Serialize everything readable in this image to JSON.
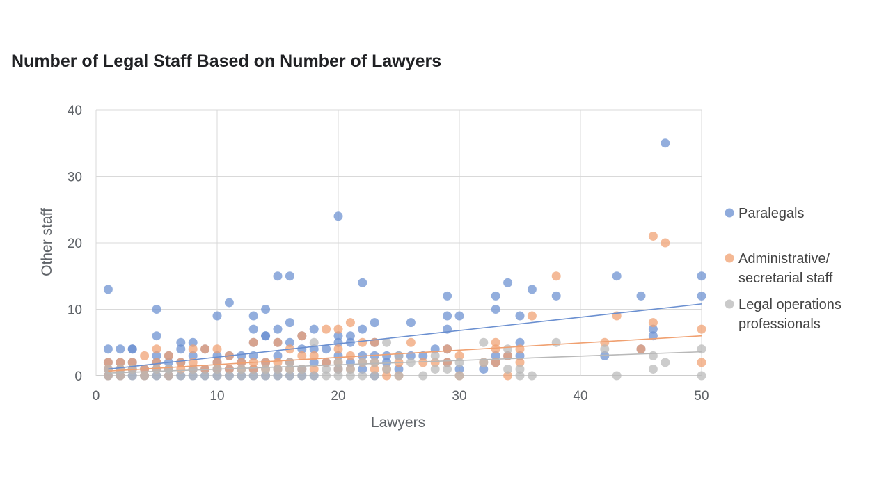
{
  "chart_data": {
    "type": "scatter",
    "title": "Number of Legal Staff Based on Number of Lawyers",
    "xlabel": "Lawyers",
    "ylabel": "Other staff",
    "xlim": [
      0,
      50
    ],
    "ylim": [
      0,
      40
    ],
    "xticks": [
      0,
      10,
      20,
      30,
      40,
      50
    ],
    "yticks": [
      0,
      10,
      20,
      30,
      40
    ],
    "grid": true,
    "legend_position": "right",
    "series": [
      {
        "name": "Paralegals",
        "legend_lines": [
          "Paralegals"
        ],
        "color": "#6a8fd0",
        "trendline": [
          [
            1,
            1.0
          ],
          [
            50,
            10.8
          ]
        ],
        "points": [
          [
            1,
            13
          ],
          [
            1,
            4
          ],
          [
            1,
            2
          ],
          [
            1,
            1
          ],
          [
            1,
            0
          ],
          [
            2,
            4
          ],
          [
            2,
            2
          ],
          [
            2,
            1
          ],
          [
            2,
            0
          ],
          [
            3,
            4
          ],
          [
            3,
            4
          ],
          [
            3,
            2
          ],
          [
            3,
            1
          ],
          [
            3,
            0
          ],
          [
            4,
            1
          ],
          [
            4,
            0
          ],
          [
            5,
            10
          ],
          [
            5,
            6
          ],
          [
            5,
            3
          ],
          [
            5,
            2
          ],
          [
            5,
            1
          ],
          [
            5,
            0
          ],
          [
            6,
            3
          ],
          [
            6,
            2
          ],
          [
            6,
            1
          ],
          [
            6,
            0
          ],
          [
            7,
            5
          ],
          [
            7,
            4
          ],
          [
            7,
            2
          ],
          [
            7,
            0
          ],
          [
            8,
            5
          ],
          [
            8,
            3
          ],
          [
            8,
            1
          ],
          [
            8,
            0
          ],
          [
            9,
            4
          ],
          [
            9,
            1
          ],
          [
            9,
            0
          ],
          [
            10,
            9
          ],
          [
            10,
            3
          ],
          [
            10,
            2
          ],
          [
            10,
            1
          ],
          [
            10,
            0
          ],
          [
            11,
            11
          ],
          [
            11,
            3
          ],
          [
            11,
            1
          ],
          [
            11,
            0
          ],
          [
            12,
            3
          ],
          [
            12,
            2
          ],
          [
            12,
            0
          ],
          [
            13,
            9
          ],
          [
            13,
            7
          ],
          [
            13,
            5
          ],
          [
            13,
            3
          ],
          [
            13,
            1
          ],
          [
            13,
            0
          ],
          [
            14,
            10
          ],
          [
            14,
            6
          ],
          [
            14,
            6
          ],
          [
            14,
            2
          ],
          [
            14,
            0
          ],
          [
            15,
            15
          ],
          [
            15,
            7
          ],
          [
            15,
            5
          ],
          [
            15,
            3
          ],
          [
            15,
            1
          ],
          [
            15,
            0
          ],
          [
            16,
            15
          ],
          [
            16,
            8
          ],
          [
            16,
            5
          ],
          [
            16,
            2
          ],
          [
            16,
            0
          ],
          [
            17,
            6
          ],
          [
            17,
            4
          ],
          [
            17,
            1
          ],
          [
            17,
            0
          ],
          [
            18,
            7
          ],
          [
            18,
            4
          ],
          [
            18,
            2
          ],
          [
            18,
            0
          ],
          [
            19,
            4
          ],
          [
            19,
            2
          ],
          [
            20,
            24
          ],
          [
            20,
            6
          ],
          [
            20,
            5
          ],
          [
            20,
            3
          ],
          [
            20,
            1
          ],
          [
            21,
            6
          ],
          [
            21,
            5
          ],
          [
            21,
            2
          ],
          [
            22,
            14
          ],
          [
            22,
            7
          ],
          [
            22,
            3
          ],
          [
            22,
            1
          ],
          [
            23,
            8
          ],
          [
            23,
            5
          ],
          [
            23,
            3
          ],
          [
            23,
            0
          ],
          [
            24,
            3
          ],
          [
            24,
            2
          ],
          [
            25,
            3
          ],
          [
            25,
            1
          ],
          [
            26,
            8
          ],
          [
            26,
            3
          ],
          [
            27,
            3
          ],
          [
            28,
            4
          ],
          [
            29,
            12
          ],
          [
            29,
            9
          ],
          [
            29,
            7
          ],
          [
            29,
            4
          ],
          [
            29,
            2
          ],
          [
            30,
            9
          ],
          [
            30,
            1
          ],
          [
            32,
            1
          ],
          [
            33,
            12
          ],
          [
            33,
            10
          ],
          [
            33,
            3
          ],
          [
            33,
            2
          ],
          [
            34,
            14
          ],
          [
            34,
            3
          ],
          [
            35,
            9
          ],
          [
            35,
            5
          ],
          [
            35,
            3
          ],
          [
            36,
            13
          ],
          [
            38,
            12
          ],
          [
            42,
            3
          ],
          [
            43,
            15
          ],
          [
            45,
            12
          ],
          [
            45,
            4
          ],
          [
            46,
            7
          ],
          [
            46,
            6
          ],
          [
            47,
            35
          ],
          [
            50,
            15
          ],
          [
            50,
            12
          ]
        ]
      },
      {
        "name": "Administrative/ secretarial staff",
        "legend_lines": [
          "Administrative/",
          "secretarial staff"
        ],
        "color": "#f0a070",
        "trendline": [
          [
            1,
            0.7
          ],
          [
            50,
            6.0
          ]
        ],
        "points": [
          [
            1,
            2
          ],
          [
            1,
            1
          ],
          [
            1,
            0
          ],
          [
            2,
            2
          ],
          [
            2,
            1
          ],
          [
            2,
            0
          ],
          [
            3,
            2
          ],
          [
            3,
            1
          ],
          [
            4,
            3
          ],
          [
            4,
            1
          ],
          [
            4,
            0
          ],
          [
            5,
            4
          ],
          [
            5,
            2
          ],
          [
            5,
            1
          ],
          [
            6,
            3
          ],
          [
            6,
            1
          ],
          [
            6,
            0
          ],
          [
            7,
            2
          ],
          [
            7,
            1
          ],
          [
            8,
            4
          ],
          [
            8,
            2
          ],
          [
            8,
            1
          ],
          [
            9,
            4
          ],
          [
            9,
            1
          ],
          [
            10,
            4
          ],
          [
            10,
            2
          ],
          [
            10,
            1
          ],
          [
            11,
            3
          ],
          [
            11,
            1
          ],
          [
            12,
            2
          ],
          [
            12,
            1
          ],
          [
            13,
            5
          ],
          [
            13,
            2
          ],
          [
            13,
            1
          ],
          [
            14,
            2
          ],
          [
            14,
            1
          ],
          [
            15,
            5
          ],
          [
            15,
            2
          ],
          [
            15,
            1
          ],
          [
            16,
            4
          ],
          [
            16,
            2
          ],
          [
            16,
            1
          ],
          [
            17,
            6
          ],
          [
            17,
            3
          ],
          [
            17,
            1
          ],
          [
            18,
            3
          ],
          [
            18,
            1
          ],
          [
            19,
            7
          ],
          [
            19,
            2
          ],
          [
            20,
            7
          ],
          [
            20,
            4
          ],
          [
            20,
            2
          ],
          [
            20,
            1
          ],
          [
            21,
            8
          ],
          [
            21,
            3
          ],
          [
            21,
            1
          ],
          [
            22,
            5
          ],
          [
            22,
            2
          ],
          [
            23,
            5
          ],
          [
            23,
            2
          ],
          [
            23,
            1
          ],
          [
            24,
            1
          ],
          [
            24,
            0
          ],
          [
            25,
            2
          ],
          [
            25,
            0
          ],
          [
            26,
            5
          ],
          [
            27,
            2
          ],
          [
            28,
            2
          ],
          [
            29,
            4
          ],
          [
            29,
            2
          ],
          [
            30,
            3
          ],
          [
            30,
            0
          ],
          [
            32,
            2
          ],
          [
            33,
            5
          ],
          [
            33,
            4
          ],
          [
            33,
            2
          ],
          [
            34,
            0
          ],
          [
            34,
            3
          ],
          [
            35,
            4
          ],
          [
            35,
            2
          ],
          [
            36,
            9
          ],
          [
            38,
            15
          ],
          [
            42,
            5
          ],
          [
            43,
            9
          ],
          [
            45,
            4
          ],
          [
            46,
            21
          ],
          [
            46,
            8
          ],
          [
            47,
            20
          ],
          [
            50,
            7
          ],
          [
            50,
            2
          ]
        ]
      },
      {
        "name": "Legal operations professionals",
        "legend_lines": [
          "Legal operations",
          "professionals"
        ],
        "color": "#b8b8b8",
        "trendline": [
          [
            1,
            0.4
          ],
          [
            50,
            3.6
          ]
        ],
        "points": [
          [
            1,
            1
          ],
          [
            1,
            0
          ],
          [
            2,
            1
          ],
          [
            2,
            0
          ],
          [
            3,
            1
          ],
          [
            3,
            0
          ],
          [
            4,
            0
          ],
          [
            5,
            1
          ],
          [
            5,
            0
          ],
          [
            6,
            1
          ],
          [
            6,
            0
          ],
          [
            7,
            0
          ],
          [
            8,
            1
          ],
          [
            8,
            0
          ],
          [
            9,
            0
          ],
          [
            10,
            1
          ],
          [
            10,
            0
          ],
          [
            11,
            0
          ],
          [
            12,
            1
          ],
          [
            12,
            0
          ],
          [
            13,
            0
          ],
          [
            14,
            1
          ],
          [
            14,
            0
          ],
          [
            15,
            1
          ],
          [
            15,
            0
          ],
          [
            16,
            2
          ],
          [
            16,
            1
          ],
          [
            16,
            0
          ],
          [
            17,
            1
          ],
          [
            17,
            0
          ],
          [
            18,
            5
          ],
          [
            18,
            0
          ],
          [
            19,
            1
          ],
          [
            19,
            0
          ],
          [
            20,
            2
          ],
          [
            20,
            1
          ],
          [
            20,
            0
          ],
          [
            21,
            1
          ],
          [
            21,
            0
          ],
          [
            22,
            2
          ],
          [
            22,
            0
          ],
          [
            23,
            2
          ],
          [
            23,
            0
          ],
          [
            24,
            5
          ],
          [
            24,
            1
          ],
          [
            25,
            3
          ],
          [
            25,
            0
          ],
          [
            26,
            2
          ],
          [
            27,
            0
          ],
          [
            28,
            3
          ],
          [
            28,
            1
          ],
          [
            29,
            1
          ],
          [
            30,
            2
          ],
          [
            30,
            0
          ],
          [
            32,
            5
          ],
          [
            32,
            2
          ],
          [
            34,
            4
          ],
          [
            34,
            1
          ],
          [
            35,
            1
          ],
          [
            35,
            0
          ],
          [
            36,
            0
          ],
          [
            38,
            5
          ],
          [
            42,
            4
          ],
          [
            43,
            0
          ],
          [
            46,
            3
          ],
          [
            46,
            1
          ],
          [
            47,
            2
          ],
          [
            50,
            4
          ],
          [
            50,
            0
          ]
        ]
      }
    ]
  }
}
